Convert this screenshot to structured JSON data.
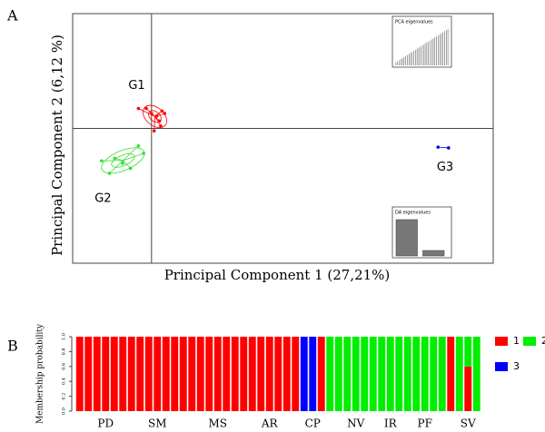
{
  "chart_data": [
    {
      "type": "scatter",
      "panel": "A",
      "xlabel": "Principal Component  1 (27,21%)",
      "ylabel": "Principal Component 2  (6,12 %)",
      "xlim": [
        -3,
        13
      ],
      "ylim": [
        -5.4,
        4.6
      ],
      "series": [
        {
          "name": "G1",
          "color": "#ff0000",
          "x": [
            0.0,
            0.2,
            0.4,
            -0.2,
            0.3,
            0.5,
            0.1,
            -0.5,
            0.35
          ],
          "y": [
            0.6,
            0.5,
            0.7,
            0.8,
            0.3,
            0.6,
            -0.1,
            0.8,
            0.1
          ]
        },
        {
          "name": "G2",
          "color": "#33dd33",
          "x": [
            -1.1,
            -0.5,
            -1.6,
            -0.8,
            -1.4,
            -0.3,
            -1.9
          ],
          "y": [
            -1.4,
            -0.7,
            -1.8,
            -1.6,
            -1.2,
            -1.0,
            -1.3
          ]
        },
        {
          "name": "G3",
          "color": "#0000dd",
          "x": [
            10.9,
            11.3
          ],
          "y": [
            -0.75,
            -0.78
          ]
        }
      ],
      "insets": [
        {
          "title": "PCA eigenvalues",
          "color": "#555555",
          "values": [
            3,
            4,
            5,
            6,
            7,
            8,
            9,
            10,
            11,
            12,
            13,
            14,
            15,
            16,
            17,
            18,
            19,
            20,
            21,
            22,
            23,
            24,
            25,
            26,
            27,
            28,
            29,
            30,
            31,
            32,
            33,
            34,
            35
          ]
        },
        {
          "title": "DA eigenvalues",
          "color": "#777777",
          "values": [
            10,
            1.5
          ]
        }
      ]
    },
    {
      "type": "bar",
      "panel": "B",
      "ylabel": "Membership probability",
      "categories": [
        null,
        null,
        null,
        "PD",
        null,
        null,
        null,
        null,
        null,
        "SM",
        null,
        null,
        null,
        null,
        null,
        null,
        "MS",
        null,
        null,
        null,
        null,
        null,
        "AR",
        null,
        null,
        null,
        null,
        "CP",
        null,
        null,
        null,
        null,
        "NV",
        null,
        null,
        null,
        "IR",
        null,
        null,
        null,
        "PF",
        null,
        null,
        null,
        null,
        "SV",
        null
      ],
      "ylim": [
        0,
        1
      ],
      "yticks": [
        {
          "value": 0,
          "label": "0.0"
        },
        {
          "value": 0.2,
          "label": "0.2"
        },
        {
          "value": 0.4,
          "label": "0.4"
        },
        {
          "value": 0.6,
          "label": "0.6"
        },
        {
          "value": 0.8,
          "label": "0.8"
        },
        {
          "value": 1,
          "label": "1.0"
        }
      ],
      "series": [
        {
          "name": "1",
          "color": "#ff0000",
          "values": [
            1,
            1,
            1,
            1,
            1,
            1,
            1,
            1,
            1,
            1,
            1,
            1,
            1,
            1,
            1,
            1,
            1,
            1,
            1,
            1,
            1,
            1,
            1,
            1,
            1,
            1,
            0,
            0,
            1,
            0,
            0,
            0,
            0,
            0,
            0,
            0,
            0,
            0,
            0,
            0,
            0,
            0,
            0,
            1,
            0,
            0.6,
            0
          ]
        },
        {
          "name": "2",
          "color": "#00ee00",
          "values": [
            0,
            0,
            0,
            0,
            0,
            0,
            0,
            0,
            0,
            0,
            0,
            0,
            0,
            0,
            0,
            0,
            0,
            0,
            0,
            0,
            0,
            0,
            0,
            0,
            0,
            0,
            0,
            0,
            0,
            1,
            1,
            1,
            1,
            1,
            1,
            1,
            1,
            1,
            1,
            1,
            1,
            1,
            1,
            0,
            1,
            0.4,
            1
          ]
        },
        {
          "name": "3",
          "color": "#0000ff",
          "values": [
            0,
            0,
            0,
            0,
            0,
            0,
            0,
            0,
            0,
            0,
            0,
            0,
            0,
            0,
            0,
            0,
            0,
            0,
            0,
            0,
            0,
            0,
            0,
            0,
            0,
            0,
            1,
            1,
            0,
            0,
            0,
            0,
            0,
            0,
            0,
            0,
            0,
            0,
            0,
            0,
            0,
            0,
            0,
            0,
            0,
            0,
            0
          ]
        }
      ]
    }
  ]
}
